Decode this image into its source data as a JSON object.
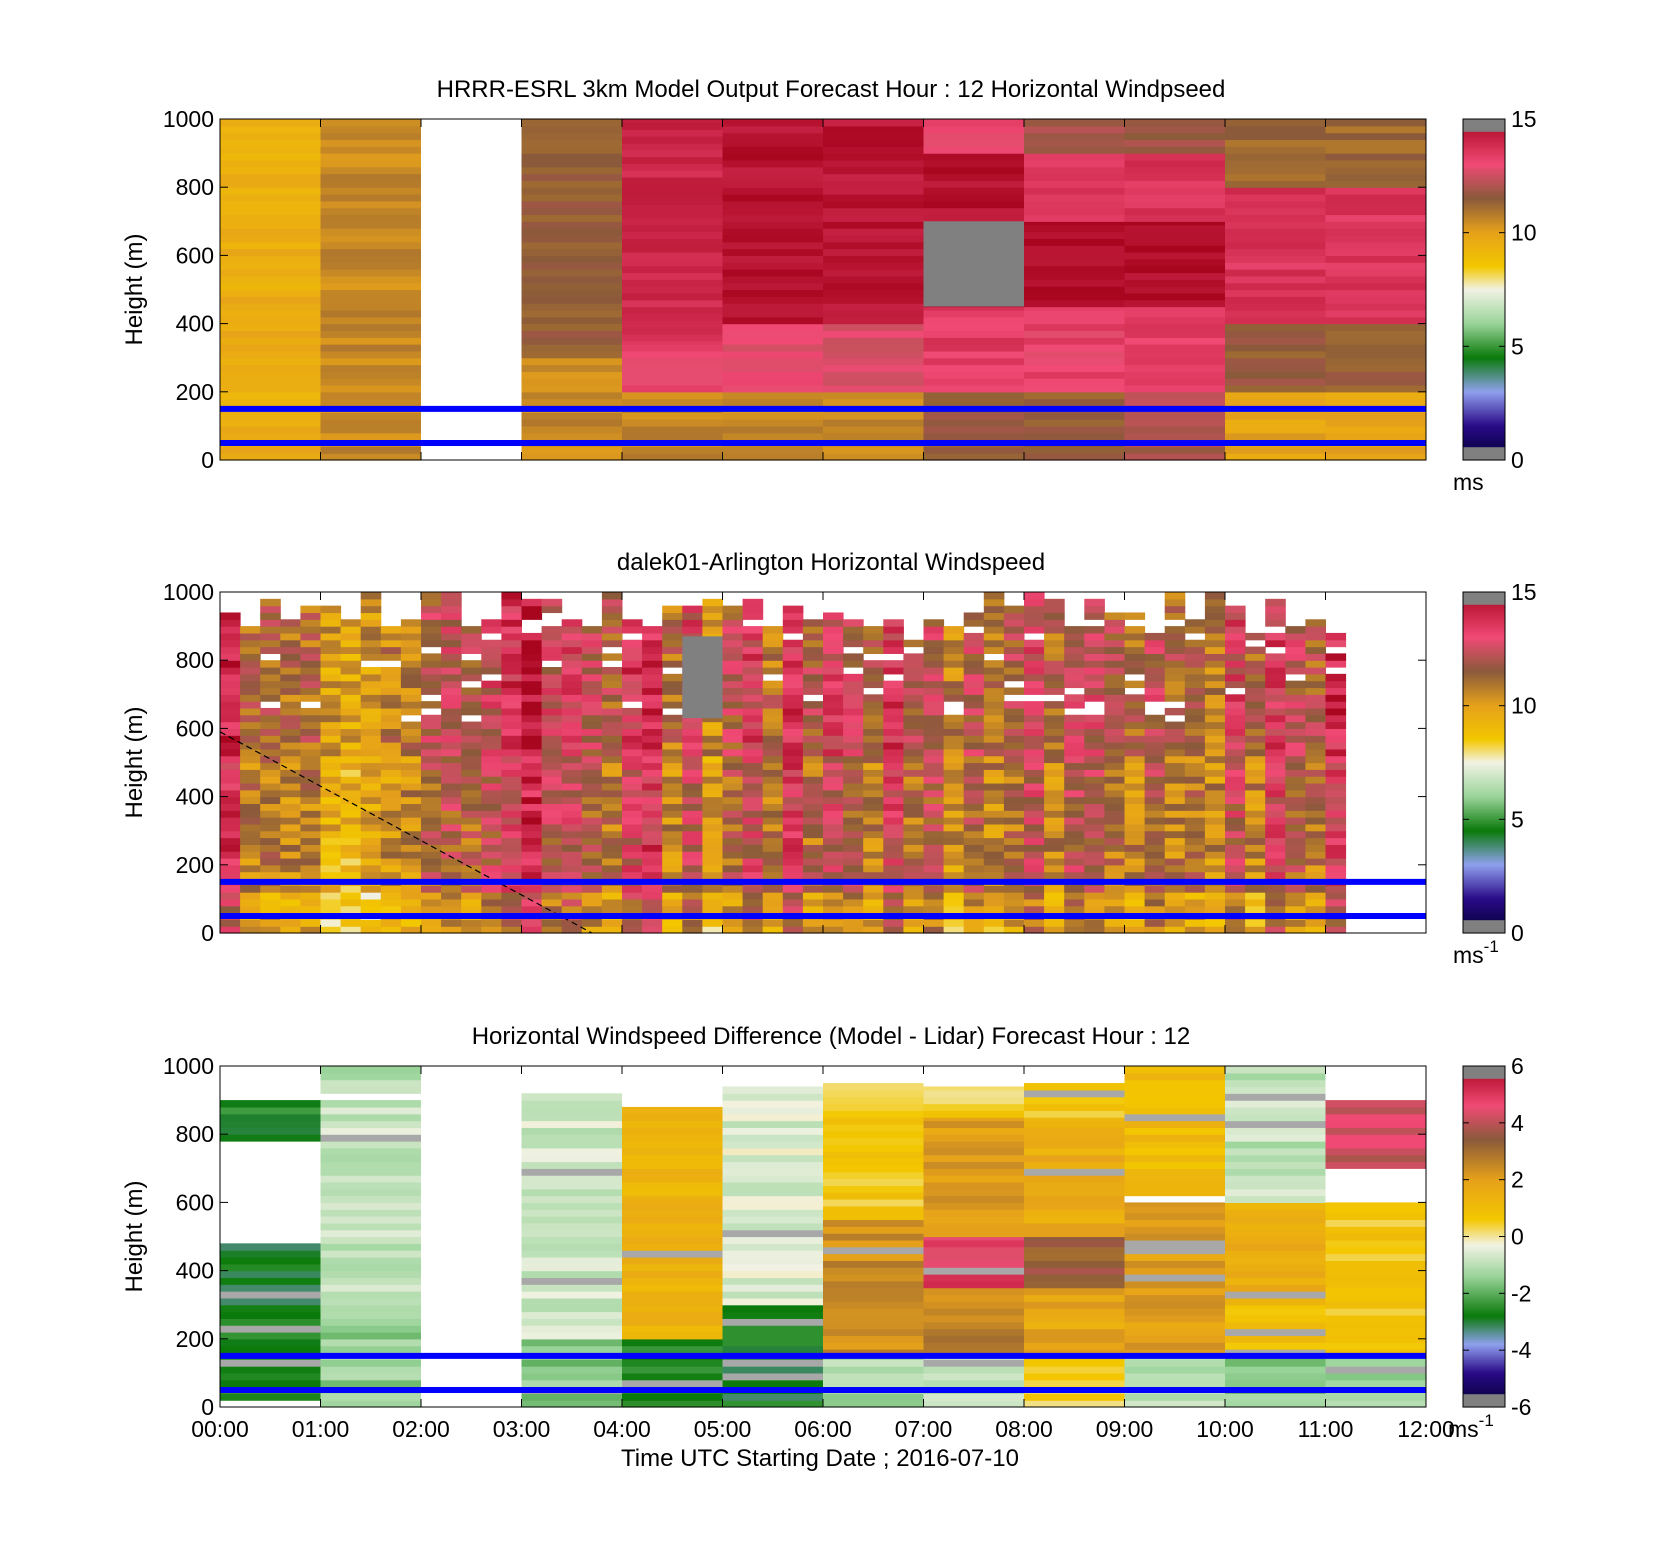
{
  "figure": {
    "xlabel": "Time UTC  Starting Date ; 2016-07-10",
    "x_tick_labels": [
      "00:00",
      "01:00",
      "02:00",
      "03:00",
      "04:00",
      "05:00",
      "06:00",
      "07:00",
      "08:00",
      "09:00",
      "10:00",
      "11:00",
      "12:00"
    ]
  },
  "chart_data": [
    {
      "type": "heatmap",
      "title": "HRRR-ESRL 3km Model Output   Forecast Hour : 12 Horizontal Windpseed",
      "ylabel": "Height (m)",
      "ylim": [
        0,
        1000
      ],
      "y_ticks": [
        0,
        200,
        400,
        600,
        800,
        1000
      ],
      "xlim_hours": [
        0,
        12
      ],
      "colorbar": {
        "range": [
          0,
          15
        ],
        "ticks": [
          0,
          5,
          10,
          15
        ],
        "unit": "ms",
        "unit_sup": ""
      },
      "reference_lines_m": [
        50,
        150
      ],
      "columns": [
        {
          "t0": 0,
          "t1": 1,
          "cells": [
            {
              "z0": 0,
              "z1": 1000,
              "v": 9.5
            }
          ]
        },
        {
          "t0": 1,
          "t1": 2,
          "cells": [
            {
              "z0": 0,
              "z1": 1000,
              "v": 10.5
            }
          ]
        },
        {
          "t0": 3,
          "t1": 4,
          "cells": [
            {
              "z0": 0,
              "z1": 300,
              "v": 10.5
            },
            {
              "z0": 300,
              "z1": 1000,
              "v": 11.5
            }
          ]
        },
        {
          "t0": 4,
          "t1": 5,
          "cells": [
            {
              "z0": 0,
              "z1": 200,
              "v": 10.5
            },
            {
              "z0": 200,
              "z1": 350,
              "v": 13.2
            },
            {
              "z0": 350,
              "z1": 1000,
              "v": 14.0
            }
          ]
        },
        {
          "t0": 5,
          "t1": 6,
          "cells": [
            {
              "z0": 0,
              "z1": 200,
              "v": 10.5
            },
            {
              "z0": 200,
              "z1": 400,
              "v": 12.8
            },
            {
              "z0": 400,
              "z1": 1000,
              "v": 14.6
            }
          ]
        },
        {
          "t0": 6,
          "t1": 7,
          "cells": [
            {
              "z0": 0,
              "z1": 200,
              "v": 10.5
            },
            {
              "z0": 200,
              "z1": 400,
              "v": 12.6
            },
            {
              "z0": 400,
              "z1": 1000,
              "v": 14.5
            }
          ]
        },
        {
          "t0": 7,
          "t1": 8,
          "cells": [
            {
              "z0": 0,
              "z1": 200,
              "v": 11.5
            },
            {
              "z0": 200,
              "z1": 450,
              "v": 13.4
            },
            {
              "z0": 450,
              "z1": 700,
              "v": 15.5
            },
            {
              "z0": 700,
              "z1": 900,
              "v": 14.6
            },
            {
              "z0": 900,
              "z1": 1000,
              "v": 13.2
            }
          ]
        },
        {
          "t0": 8,
          "t1": 9,
          "cells": [
            {
              "z0": 0,
              "z1": 200,
              "v": 11.5
            },
            {
              "z0": 200,
              "z1": 450,
              "v": 13.2
            },
            {
              "z0": 450,
              "z1": 700,
              "v": 14.8
            },
            {
              "z0": 700,
              "z1": 900,
              "v": 13.6
            },
            {
              "z0": 900,
              "z1": 1000,
              "v": 11.8
            }
          ]
        },
        {
          "t0": 9,
          "t1": 10,
          "cells": [
            {
              "z0": 0,
              "z1": 200,
              "v": 12.0
            },
            {
              "z0": 200,
              "z1": 450,
              "v": 13.4
            },
            {
              "z0": 450,
              "z1": 700,
              "v": 14.8
            },
            {
              "z0": 700,
              "z1": 900,
              "v": 13.6
            },
            {
              "z0": 900,
              "z1": 1000,
              "v": 11.8
            }
          ]
        },
        {
          "t0": 10,
          "t1": 11,
          "cells": [
            {
              "z0": 0,
              "z1": 200,
              "v": 9.8
            },
            {
              "z0": 200,
              "z1": 400,
              "v": 11.5
            },
            {
              "z0": 400,
              "z1": 800,
              "v": 13.6
            },
            {
              "z0": 800,
              "z1": 1000,
              "v": 11.2
            }
          ]
        },
        {
          "t0": 11,
          "t1": 12,
          "cells": [
            {
              "z0": 0,
              "z1": 200,
              "v": 9.8
            },
            {
              "z0": 200,
              "z1": 400,
              "v": 11.5
            },
            {
              "z0": 400,
              "z1": 800,
              "v": 13.6
            },
            {
              "z0": 800,
              "z1": 1000,
              "v": 11.2
            }
          ]
        }
      ],
      "out_of_range_cells": [
        {
          "t0": 7,
          "t1": 8,
          "z0": 450,
          "z1": 700
        }
      ]
    },
    {
      "type": "heatmap",
      "title": "dalek01-Arlington  Horizontal Windspeed",
      "ylabel": "Height (m)",
      "ylim": [
        0,
        1000
      ],
      "y_ticks": [
        0,
        200,
        400,
        600,
        800,
        1000
      ],
      "xlim_hours": [
        0,
        12
      ],
      "colorbar": {
        "range": [
          0,
          15
        ],
        "ticks": [
          0,
          5,
          10,
          15
        ],
        "unit": "ms",
        "unit_sup": "-1"
      },
      "reference_lines_m": [
        50,
        150
      ],
      "time_bin_hours": 0.2,
      "profile_means": [
        13.5,
        10.8,
        10.9,
        10.6,
        10.8,
        9.4,
        9.2,
        9.6,
        10.2,
        10.4,
        11.5,
        11.8,
        11.4,
        12.2,
        13.0,
        14.2,
        12.0,
        12.6,
        11.6,
        11.0,
        12.8,
        13.4,
        10.6,
        12.4,
        9.8,
        11.4,
        12.6,
        10.6,
        13.2,
        11.2,
        12.4,
        11.8,
        10.8,
        12.8,
        11.2,
        11.8,
        10.2,
        11.6,
        10.6,
        11.2,
        12.4,
        10.6,
        12.2,
        12.0,
        11.0,
        10.6,
        11.8,
        10.8,
        11.0,
        10.4,
        12.4,
        10.6,
        12.8,
        11.6,
        11.0,
        13.2
      ],
      "dashed_line": {
        "x_hours": [
          0,
          3.7
        ],
        "z_m": [
          590,
          0
        ]
      },
      "out_of_range_cells": [
        {
          "t0": 4.6,
          "t1": 5.0,
          "z0": 630,
          "z1": 870
        }
      ]
    },
    {
      "type": "heatmap",
      "title": "Horizontal Windspeed Difference (Model - Lidar) Forecast Hour : 12",
      "ylabel": "Height (m)",
      "ylim": [
        0,
        1000
      ],
      "y_ticks": [
        0,
        200,
        400,
        600,
        800,
        1000
      ],
      "xlim_hours": [
        0,
        12
      ],
      "colorbar": {
        "range": [
          -6,
          6
        ],
        "ticks": [
          -6,
          -4,
          -2,
          0,
          2,
          4,
          6
        ],
        "unit": "ms",
        "unit_sup": "-1"
      },
      "reference_lines_m": [
        50,
        150
      ],
      "columns": [
        {
          "t0": 0,
          "t1": 1,
          "cells": [
            {
              "z0": 20,
              "z1": 480,
              "v": -2.8
            },
            {
              "z0": 780,
              "z1": 900,
              "v": -2.6
            }
          ]
        },
        {
          "t0": 1,
          "t1": 2,
          "cells": [
            {
              "z0": 0,
              "z1": 300,
              "v": -1.4
            },
            {
              "z0": 300,
              "z1": 900,
              "v": -0.8
            },
            {
              "z0": 920,
              "z1": 1000,
              "v": -1.2
            }
          ]
        },
        {
          "t0": 3,
          "t1": 4,
          "cells": [
            {
              "z0": 0,
              "z1": 200,
              "v": -1.6
            },
            {
              "z0": 200,
              "z1": 920,
              "v": -0.7
            }
          ]
        },
        {
          "t0": 4,
          "t1": 5,
          "cells": [
            {
              "z0": 0,
              "z1": 200,
              "v": -2.6
            },
            {
              "z0": 200,
              "z1": 880,
              "v": 1.4
            }
          ]
        },
        {
          "t0": 5,
          "t1": 6,
          "cells": [
            {
              "z0": 0,
              "z1": 300,
              "v": -2.8
            },
            {
              "z0": 300,
              "z1": 940,
              "v": -0.6
            }
          ]
        },
        {
          "t0": 6,
          "t1": 7,
          "cells": [
            {
              "z0": 0,
              "z1": 150,
              "v": -1.2
            },
            {
              "z0": 150,
              "z1": 550,
              "v": 2.4
            },
            {
              "z0": 550,
              "z1": 950,
              "v": 0.6
            }
          ]
        },
        {
          "t0": 7,
          "t1": 8,
          "cells": [
            {
              "z0": 0,
              "z1": 150,
              "v": -0.8
            },
            {
              "z0": 150,
              "z1": 350,
              "v": 2.6
            },
            {
              "z0": 350,
              "z1": 500,
              "v": 4.8
            },
            {
              "z0": 500,
              "z1": 850,
              "v": 2.0
            },
            {
              "z0": 850,
              "z1": 940,
              "v": 0.4
            }
          ]
        },
        {
          "t0": 8,
          "t1": 9,
          "cells": [
            {
              "z0": 0,
              "z1": 150,
              "v": 0.4
            },
            {
              "z0": 150,
              "z1": 350,
              "v": 1.8
            },
            {
              "z0": 350,
              "z1": 500,
              "v": 3.4
            },
            {
              "z0": 500,
              "z1": 850,
              "v": 1.6
            },
            {
              "z0": 850,
              "z1": 950,
              "v": 0.6
            }
          ]
        },
        {
          "t0": 9,
          "t1": 10,
          "cells": [
            {
              "z0": 0,
              "z1": 150,
              "v": -1.0
            },
            {
              "z0": 150,
              "z1": 600,
              "v": 2.0
            },
            {
              "z0": 620,
              "z1": 1000,
              "v": 1.0
            }
          ]
        },
        {
          "t0": 10,
          "t1": 11,
          "cells": [
            {
              "z0": 0,
              "z1": 150,
              "v": -1.6
            },
            {
              "z0": 150,
              "z1": 300,
              "v": 0.8
            },
            {
              "z0": 300,
              "z1": 600,
              "v": 1.6
            },
            {
              "z0": 600,
              "z1": 1000,
              "v": -0.9
            }
          ]
        },
        {
          "t0": 11,
          "t1": 12,
          "cells": [
            {
              "z0": 0,
              "z1": 150,
              "v": -1.4
            },
            {
              "z0": 150,
              "z1": 600,
              "v": 0.6
            },
            {
              "z0": 700,
              "z1": 900,
              "v": 4.2
            }
          ]
        }
      ]
    }
  ],
  "colors": {
    "reference_line": "#0000ff",
    "out_of_range": "#808080",
    "speed_colormap": [
      {
        "v": 0,
        "c": "#000033"
      },
      {
        "v": 1.5,
        "c": "#2a0a88"
      },
      {
        "v": 3,
        "c": "#8fa0ee"
      },
      {
        "v": 4.5,
        "c": "#0a7a0a"
      },
      {
        "v": 6,
        "c": "#9ad49a"
      },
      {
        "v": 7.5,
        "c": "#f2f2e4"
      },
      {
        "v": 8.5,
        "c": "#f3c700"
      },
      {
        "v": 10,
        "c": "#e6a11a"
      },
      {
        "v": 11.5,
        "c": "#8a5a3a"
      },
      {
        "v": 13,
        "c": "#f04a75"
      },
      {
        "v": 15,
        "c": "#a8051f"
      }
    ],
    "diff_colormap": [
      {
        "v": -6,
        "c": "#000033"
      },
      {
        "v": -4.8,
        "c": "#2a0a88"
      },
      {
        "v": -3.8,
        "c": "#8fa0ee"
      },
      {
        "v": -2.8,
        "c": "#0a7a0a"
      },
      {
        "v": -1.4,
        "c": "#9ad49a"
      },
      {
        "v": -0.3,
        "c": "#f2f2e4"
      },
      {
        "v": 0.6,
        "c": "#f3c700"
      },
      {
        "v": 2,
        "c": "#e6a11a"
      },
      {
        "v": 3.4,
        "c": "#8a5a3a"
      },
      {
        "v": 4.6,
        "c": "#f04a75"
      },
      {
        "v": 6,
        "c": "#a8051f"
      }
    ]
  }
}
